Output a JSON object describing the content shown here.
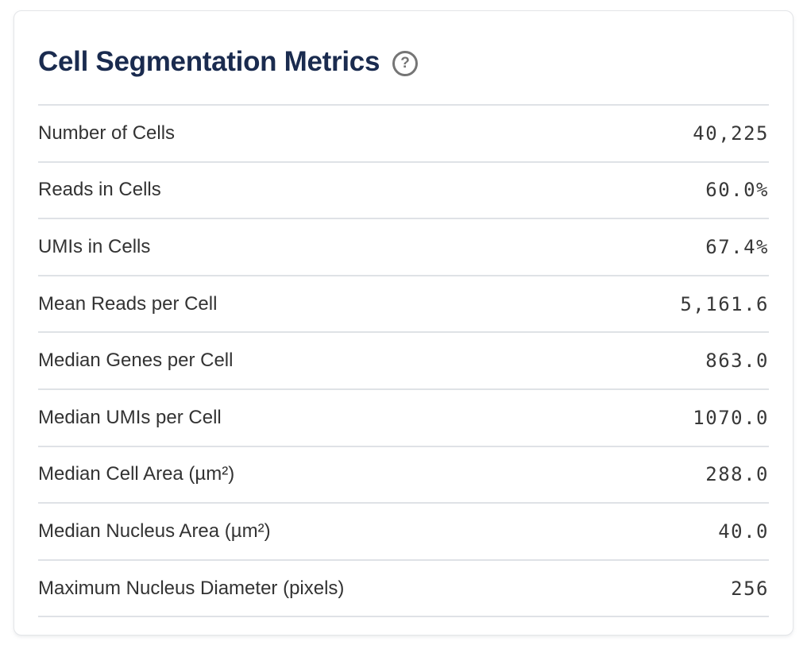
{
  "card": {
    "title": "Cell Segmentation Metrics",
    "help_icon": {
      "name": "question-mark-circle-icon",
      "glyph": "?"
    },
    "metrics": [
      {
        "label": "Number of Cells",
        "value": "40,225"
      },
      {
        "label": "Reads in Cells",
        "value": "60.0%"
      },
      {
        "label": "UMIs in Cells",
        "value": "67.4%"
      },
      {
        "label": "Mean Reads per Cell",
        "value": "5,161.6"
      },
      {
        "label": "Median Genes per Cell",
        "value": "863.0"
      },
      {
        "label": "Median UMIs per Cell",
        "value": "1070.0"
      },
      {
        "label": "Median Cell Area (µm²)",
        "value": "288.0"
      },
      {
        "label": "Median Nucleus Area (µm²)",
        "value": "40.0"
      },
      {
        "label": "Maximum Nucleus Diameter (pixels)",
        "value": "256"
      }
    ],
    "colors": {
      "title": "#1a2b4f",
      "label_text": "#333333",
      "value_text": "#383838",
      "divider": "#dfe2e6",
      "card_border": "#e3e5e8",
      "help_icon": "#757575",
      "background": "#ffffff"
    }
  }
}
